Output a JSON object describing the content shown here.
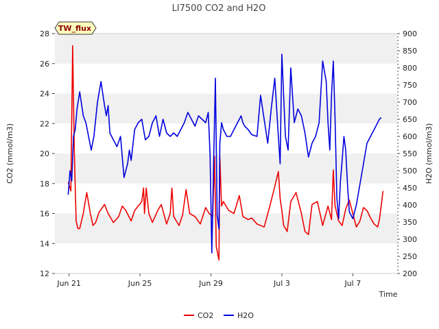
{
  "chart_data": {
    "type": "line",
    "title": "LI7500 CO2 and H2O",
    "badge": "TW_flux",
    "xlabel": "Time",
    "ylabel": "CO2 (mmol/m3)",
    "y2label": "H2O (mmol/m3)",
    "xlim": [
      -0.8,
      18.5
    ],
    "ylim": [
      12,
      28
    ],
    "y2lim": [
      200,
      900
    ],
    "xticks": [
      {
        "value": 0,
        "label": "Jun 21"
      },
      {
        "value": 4,
        "label": "Jun 25"
      },
      {
        "value": 8,
        "label": "Jun 29"
      },
      {
        "value": 12,
        "label": "Jul 3"
      },
      {
        "value": 16,
        "label": "Jul 7"
      }
    ],
    "yticks": [
      12,
      14,
      16,
      18,
      20,
      22,
      24,
      26,
      28
    ],
    "y2ticks": [
      200,
      250,
      300,
      350,
      400,
      450,
      500,
      550,
      600,
      650,
      700,
      750,
      800,
      850,
      900
    ],
    "bands": [
      [
        14,
        16
      ],
      [
        18,
        20
      ],
      [
        22,
        24
      ],
      [
        26,
        28
      ]
    ],
    "legend": {
      "position": "bottom-center"
    },
    "series": [
      {
        "name": "CO2",
        "axis": "left",
        "color": "#ee0000",
        "x": [
          -0.05,
          0.1,
          0.2,
          0.3,
          0.4,
          0.5,
          0.6,
          0.8,
          1.0,
          1.2,
          1.35,
          1.5,
          1.7,
          2.0,
          2.2,
          2.5,
          2.8,
          3.0,
          3.2,
          3.5,
          3.7,
          3.9,
          4.1,
          4.2,
          4.25,
          4.35,
          4.5,
          4.7,
          5.0,
          5.2,
          5.5,
          5.7,
          5.8,
          5.9,
          6.2,
          6.4,
          6.6,
          6.8,
          7.1,
          7.4,
          7.7,
          7.9,
          8.1,
          8.2,
          8.3,
          8.4,
          8.45,
          8.5,
          8.6,
          8.7,
          9.0,
          9.3,
          9.5,
          9.6,
          9.7,
          9.8,
          10.1,
          10.3,
          10.6,
          11.0,
          11.3,
          11.6,
          11.8,
          11.9,
          12.0,
          12.1,
          12.3,
          12.5,
          12.8,
          13.1,
          13.3,
          13.5,
          13.7,
          14.0,
          14.3,
          14.6,
          14.8,
          14.9,
          15.0,
          15.2,
          15.4,
          15.6,
          15.8,
          16.0,
          16.2,
          16.4,
          16.6,
          16.8,
          17.0,
          17.2,
          17.4,
          17.5,
          17.6,
          17.7
        ],
        "values": [
          18.1,
          17.5,
          27.2,
          20.0,
          15.5,
          15.0,
          15.0,
          16.0,
          17.4,
          16.0,
          15.2,
          15.4,
          16.1,
          16.6,
          16.0,
          15.4,
          15.8,
          16.5,
          16.2,
          15.5,
          16.2,
          16.5,
          16.8,
          17.7,
          16.0,
          17.7,
          16.0,
          15.4,
          16.2,
          16.6,
          15.3,
          16.0,
          17.7,
          15.8,
          15.2,
          15.9,
          17.6,
          16.0,
          15.8,
          15.3,
          16.4,
          16.0,
          15.8,
          19.8,
          13.8,
          13.2,
          12.9,
          19.8,
          16.5,
          16.8,
          16.2,
          16.0,
          16.8,
          17.2,
          16.5,
          15.8,
          15.6,
          15.7,
          15.3,
          15.1,
          16.4,
          17.8,
          18.8,
          17.0,
          16.2,
          15.2,
          14.8,
          16.8,
          17.4,
          16.0,
          14.8,
          14.6,
          16.6,
          16.8,
          15.2,
          16.5,
          15.6,
          18.9,
          16.5,
          15.5,
          15.2,
          16.3,
          16.9,
          16.0,
          15.1,
          15.5,
          16.4,
          16.2,
          15.7,
          15.3,
          15.1,
          15.6,
          16.5,
          17.5
        ]
      },
      {
        "name": "H2O",
        "axis": "right",
        "color": "#0000dd",
        "x": [
          -0.05,
          0.05,
          0.15,
          0.25,
          0.35,
          0.45,
          0.6,
          0.8,
          0.95,
          1.1,
          1.25,
          1.4,
          1.6,
          1.8,
          2.0,
          2.1,
          2.2,
          2.3,
          2.5,
          2.7,
          2.9,
          3.1,
          3.3,
          3.4,
          3.5,
          3.7,
          3.9,
          4.1,
          4.3,
          4.5,
          4.7,
          4.9,
          5.1,
          5.3,
          5.5,
          5.7,
          5.9,
          6.1,
          6.3,
          6.5,
          6.7,
          6.9,
          7.1,
          7.3,
          7.5,
          7.7,
          7.85,
          7.95,
          8.05,
          8.15,
          8.25,
          8.35,
          8.45,
          8.5,
          8.6,
          8.7,
          8.9,
          9.1,
          9.3,
          9.5,
          9.6,
          9.7,
          9.8,
          9.9,
          10.1,
          10.3,
          10.6,
          10.8,
          11.0,
          11.2,
          11.4,
          11.6,
          11.8,
          11.9,
          12.0,
          12.1,
          12.2,
          12.35,
          12.5,
          12.7,
          12.9,
          13.1,
          13.3,
          13.5,
          13.7,
          13.9,
          14.1,
          14.3,
          14.5,
          14.6,
          14.7,
          14.8,
          14.9,
          15.0,
          15.1,
          15.2,
          15.3,
          15.4,
          15.5,
          15.6,
          15.7,
          15.8,
          16.0,
          16.2,
          16.4,
          16.6,
          16.8,
          17.0,
          17.2,
          17.4,
          17.5,
          17.6
        ],
        "values": [
          430,
          500,
          470,
          600,
          620,
          680,
          730,
          660,
          640,
          600,
          560,
          600,
          700,
          760,
          690,
          660,
          690,
          610,
          590,
          570,
          600,
          480,
          520,
          560,
          530,
          620,
          640,
          650,
          590,
          600,
          640,
          660,
          600,
          650,
          610,
          600,
          610,
          600,
          620,
          640,
          670,
          650,
          630,
          660,
          650,
          640,
          670,
          550,
          260,
          520,
          770,
          370,
          330,
          580,
          640,
          620,
          600,
          600,
          620,
          640,
          650,
          660,
          640,
          630,
          620,
          605,
          600,
          720,
          650,
          580,
          680,
          770,
          600,
          520,
          840,
          720,
          600,
          560,
          800,
          640,
          680,
          660,
          610,
          540,
          580,
          600,
          640,
          820,
          760,
          640,
          560,
          720,
          820,
          650,
          420,
          360,
          470,
          530,
          600,
          560,
          460,
          380,
          360,
          400,
          460,
          520,
          580,
          600,
          620,
          640,
          650,
          655
        ]
      }
    ]
  }
}
